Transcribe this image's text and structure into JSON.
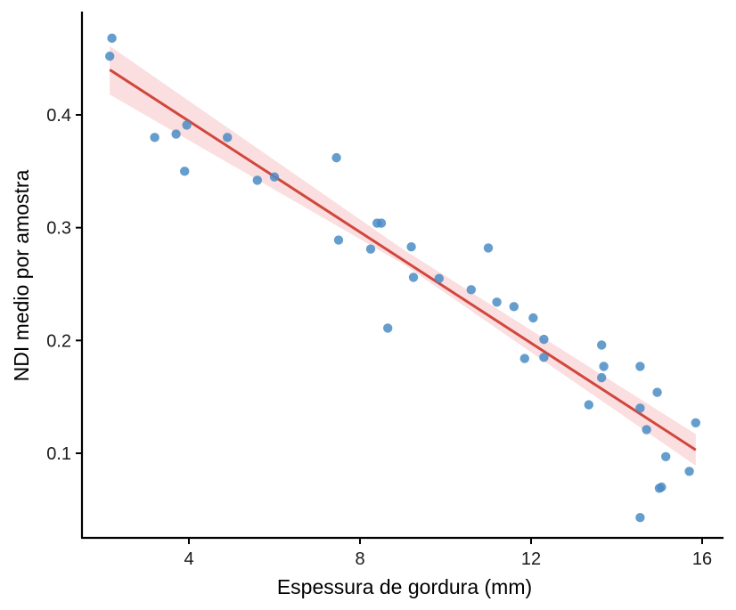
{
  "chart_data": {
    "type": "scatter",
    "xlabel": "Espessura de gordura (mm)",
    "ylabel": "NDI medio por amostra",
    "xlim": [
      1.5,
      16.5
    ],
    "ylim": [
      0.025,
      0.49
    ],
    "xticks": [
      4,
      8,
      12,
      16
    ],
    "yticks": [
      0.1,
      0.2,
      0.3,
      0.4
    ],
    "xtick_labels": [
      "4",
      "8",
      "12",
      "16"
    ],
    "ytick_labels": [
      "0.1",
      "0.2",
      "0.3",
      "0.4"
    ],
    "grid": false,
    "points": [
      {
        "x": 2.2,
        "y": 0.468
      },
      {
        "x": 2.15,
        "y": 0.452
      },
      {
        "x": 3.2,
        "y": 0.38
      },
      {
        "x": 3.7,
        "y": 0.383
      },
      {
        "x": 3.95,
        "y": 0.391
      },
      {
        "x": 3.9,
        "y": 0.35
      },
      {
        "x": 4.9,
        "y": 0.38
      },
      {
        "x": 5.6,
        "y": 0.342
      },
      {
        "x": 6.0,
        "y": 0.345
      },
      {
        "x": 7.45,
        "y": 0.362
      },
      {
        "x": 7.5,
        "y": 0.289
      },
      {
        "x": 8.25,
        "y": 0.281
      },
      {
        "x": 8.4,
        "y": 0.304
      },
      {
        "x": 8.5,
        "y": 0.304
      },
      {
        "x": 8.65,
        "y": 0.211
      },
      {
        "x": 9.2,
        "y": 0.283
      },
      {
        "x": 9.25,
        "y": 0.256
      },
      {
        "x": 9.85,
        "y": 0.255
      },
      {
        "x": 10.6,
        "y": 0.245
      },
      {
        "x": 11.0,
        "y": 0.282
      },
      {
        "x": 11.2,
        "y": 0.234
      },
      {
        "x": 11.6,
        "y": 0.23
      },
      {
        "x": 11.85,
        "y": 0.184
      },
      {
        "x": 12.05,
        "y": 0.22
      },
      {
        "x": 12.3,
        "y": 0.201
      },
      {
        "x": 12.3,
        "y": 0.185
      },
      {
        "x": 13.35,
        "y": 0.143
      },
      {
        "x": 13.65,
        "y": 0.196
      },
      {
        "x": 13.7,
        "y": 0.177
      },
      {
        "x": 13.65,
        "y": 0.167
      },
      {
        "x": 14.55,
        "y": 0.177
      },
      {
        "x": 14.55,
        "y": 0.14
      },
      {
        "x": 14.7,
        "y": 0.121
      },
      {
        "x": 14.95,
        "y": 0.154
      },
      {
        "x": 15.0,
        "y": 0.069
      },
      {
        "x": 15.05,
        "y": 0.07
      },
      {
        "x": 15.15,
        "y": 0.097
      },
      {
        "x": 15.7,
        "y": 0.084
      },
      {
        "x": 15.85,
        "y": 0.127
      },
      {
        "x": 14.55,
        "y": 0.043
      }
    ],
    "trend_line": {
      "x": [
        2.15,
        15.85
      ],
      "y": [
        0.44,
        0.103
      ]
    },
    "confidence_band": {
      "x": [
        2.15,
        9.0,
        15.85
      ],
      "lower": [
        0.418,
        0.268,
        0.089
      ],
      "upper": [
        0.461,
        0.281,
        0.117
      ]
    },
    "colors": {
      "points": "#4a8cc4",
      "trend_line": "#d0473c",
      "band": "#f9dadd",
      "axis": "#000000"
    }
  }
}
